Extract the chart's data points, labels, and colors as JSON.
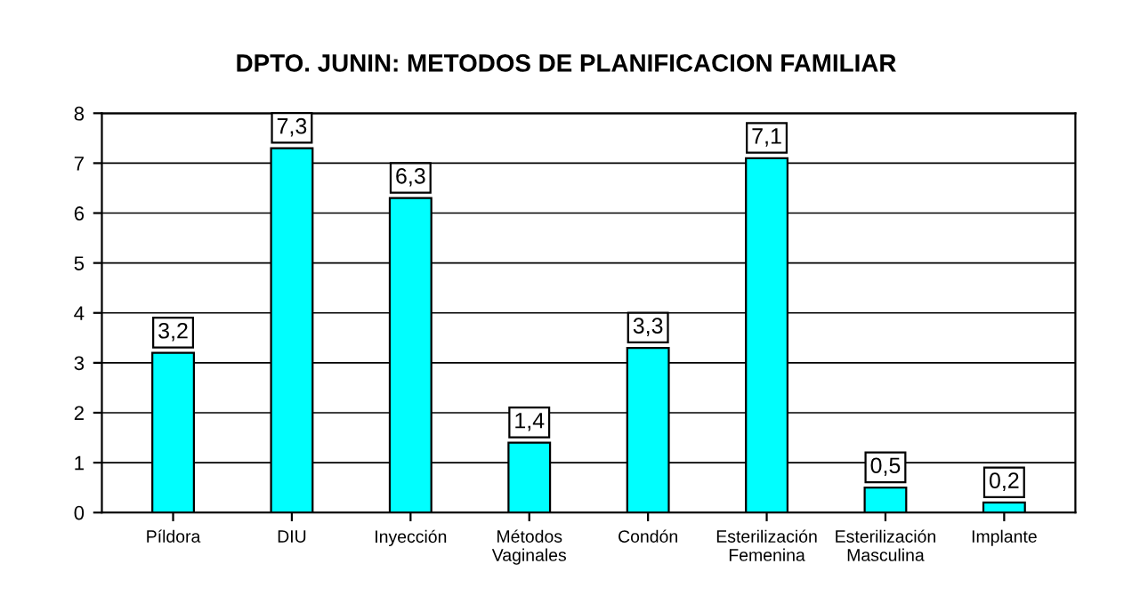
{
  "chart_data": {
    "type": "bar",
    "title": "DPTO. JUNIN: METODOS DE PLANIFICACION FAMILIAR",
    "categories": [
      "Píldora",
      "DIU",
      "Inyección",
      "Métodos\nVaginales",
      "Condón",
      "Esterilización\nFemenina",
      "Esterilización\nMasculina",
      "Implante"
    ],
    "values": [
      3.2,
      7.3,
      6.3,
      1.4,
      3.3,
      7.1,
      0.5,
      0.2
    ],
    "value_labels": [
      "3,2",
      "7,3",
      "6,3",
      "1,4",
      "3,3",
      "7,1",
      "0,5",
      "0,2"
    ],
    "color": "#00ffff",
    "ylim": [
      0,
      8
    ],
    "yticks": [
      0,
      1,
      2,
      3,
      4,
      5,
      6,
      7,
      8
    ],
    "grid": "y"
  }
}
